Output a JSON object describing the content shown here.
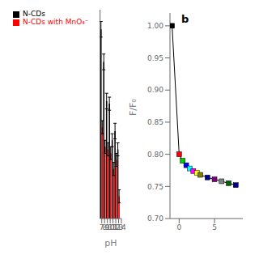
{
  "chart_data": [
    {
      "type": "bar",
      "x": [
        7,
        8,
        9,
        10,
        11,
        12,
        13
      ],
      "xlabel": "pH",
      "xlim": [
        6.4,
        14
      ],
      "xticks": [
        7,
        8,
        9,
        10,
        11,
        12,
        13,
        14
      ],
      "ylim": [
        0.855,
        1.015
      ],
      "yticks": [],
      "tick_labels": "x",
      "grid": false,
      "legend": "upper left",
      "series": [
        {
          "name": "N-CDs",
          "color": "black",
          "values": [
            1.0,
            0.975,
            0.945,
            0.943,
            0.915,
            0.922,
            0.908
          ],
          "errors": [
            0.006,
            0.006,
            0.006,
            0.005,
            0.005,
            0.006,
            0.005
          ]
        },
        {
          "name": "N-CDs with MnO₄⁻",
          "color": "red",
          "values": [
            0.925,
            0.91,
            0.908,
            0.905,
            0.893,
            0.9,
            0.872
          ],
          "errors": [
            0.005,
            0.005,
            0.005,
            0.005,
            0.005,
            0.005,
            0.005
          ]
        }
      ]
    },
    {
      "type": "line",
      "x": [
        -1.0,
        0.0,
        0.5,
        1.0,
        1.5,
        2.0,
        2.5,
        3.0,
        4.0,
        5.0,
        6.0,
        7.0,
        8.0
      ],
      "values": [
        1.0,
        0.8,
        0.79,
        0.783,
        0.778,
        0.774,
        0.771,
        0.768,
        0.764,
        0.761,
        0.758,
        0.755,
        0.752
      ],
      "color": "black",
      "marker": "square",
      "colors": [
        "black",
        "red",
        "#00cc00",
        "blue",
        "cyan",
        "magenta",
        "yellow",
        "#808000",
        "#00008b",
        "purple",
        "gray",
        "#006400",
        "#00008b"
      ],
      "ylabel": "F/F₀",
      "annotation": "b",
      "grid": false,
      "xlim": [
        -1.3,
        9.0
      ],
      "ylim": [
        0.7,
        1.02
      ],
      "xticks": [
        0,
        5
      ],
      "yticks": [
        {
          "value": 0.7,
          "label": "0.70"
        },
        {
          "value": 0.75,
          "label": "0.75"
        },
        {
          "value": 0.8,
          "label": "0.80"
        },
        {
          "value": 0.85,
          "label": "0.85"
        },
        {
          "value": 0.9,
          "label": "0.90"
        },
        {
          "value": 0.95,
          "label": "0.95"
        },
        {
          "value": 1.0,
          "label": "1.00"
        }
      ]
    }
  ]
}
